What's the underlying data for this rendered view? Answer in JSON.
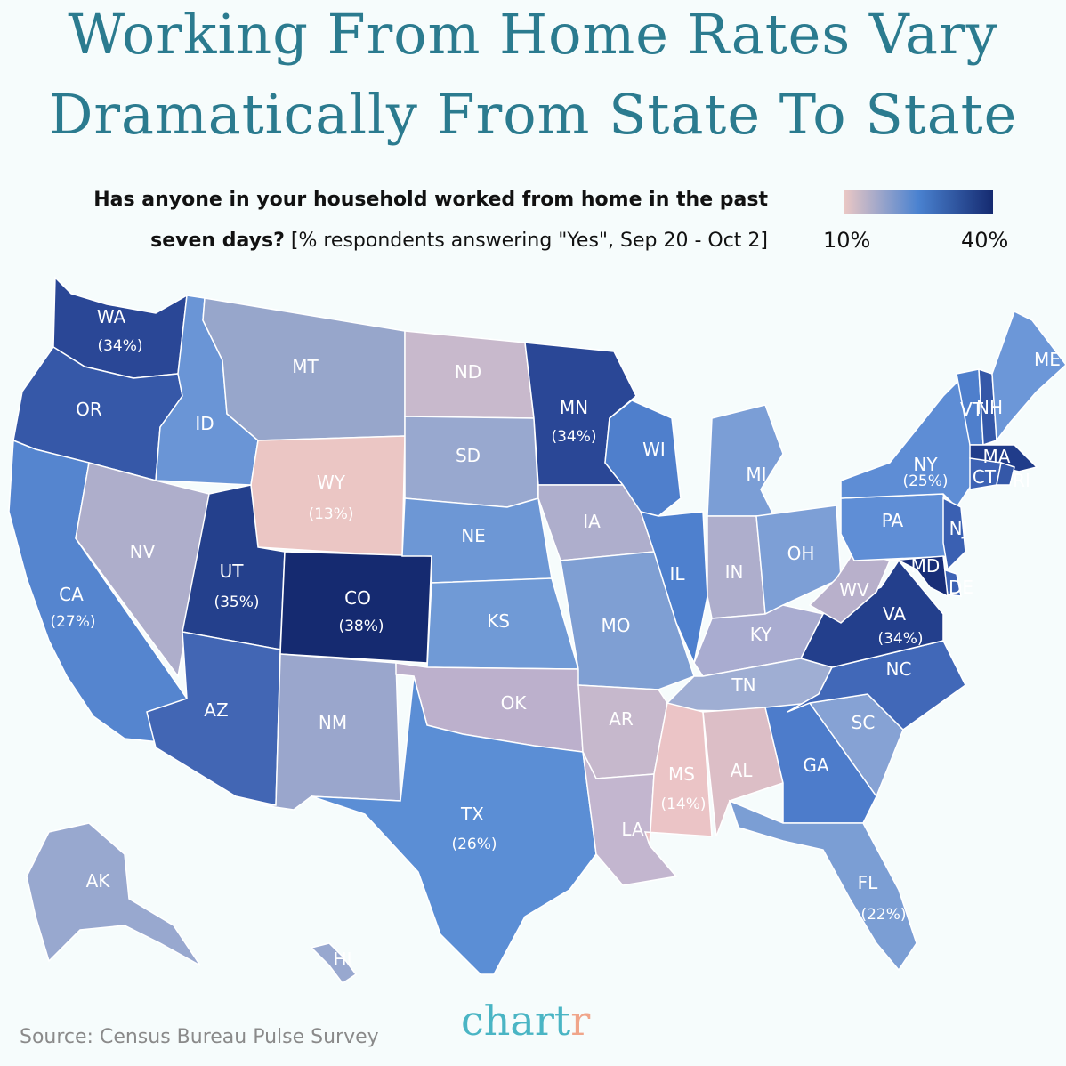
{
  "title_line1": "Working From Home Rates Vary",
  "title_line2": "Dramatically From State To State",
  "subtitle_line1": "Has anyone in your household worked from home in the past",
  "subtitle_line2_bold": "seven days?",
  "subtitle_line2_rest": " [% respondents answering \"Yes\", Sep 20 - Oct 2]",
  "legend": {
    "min_label": "10%",
    "max_label": "40%",
    "colors": [
      "#ecc8c4",
      "#4a82d0",
      "#152a70"
    ]
  },
  "source": "Source: Census Bureau Pulse Survey",
  "logo": {
    "main": "chart",
    "accent": "r"
  },
  "states": [
    {
      "abbr": "WA",
      "pct": "(34%)",
      "color": "#2a4796"
    },
    {
      "abbr": "OR",
      "pct": "",
      "color": "#3658a8"
    },
    {
      "abbr": "CA",
      "pct": "(27%)",
      "color": "#5585cf"
    },
    {
      "abbr": "ID",
      "pct": "",
      "color": "#6a95d6"
    },
    {
      "abbr": "NV",
      "pct": "",
      "color": "#aeaecb"
    },
    {
      "abbr": "MT",
      "pct": "",
      "color": "#97a6cb"
    },
    {
      "abbr": "WY",
      "pct": "(13%)",
      "color": "#ebc6c4"
    },
    {
      "abbr": "UT",
      "pct": "(35%)",
      "color": "#24408c"
    },
    {
      "abbr": "CO",
      "pct": "(38%)",
      "color": "#152a70"
    },
    {
      "abbr": "AZ",
      "pct": "",
      "color": "#4266b4"
    },
    {
      "abbr": "NM",
      "pct": "",
      "color": "#9aa6cc"
    },
    {
      "abbr": "ND",
      "pct": "",
      "color": "#c8b9cc"
    },
    {
      "abbr": "SD",
      "pct": "",
      "color": "#98a8cf"
    },
    {
      "abbr": "NE",
      "pct": "",
      "color": "#6d97d5"
    },
    {
      "abbr": "KS",
      "pct": "",
      "color": "#709ad6"
    },
    {
      "abbr": "OK",
      "pct": "",
      "color": "#bcb0cc"
    },
    {
      "abbr": "TX",
      "pct": "(26%)",
      "color": "#5b8ed5"
    },
    {
      "abbr": "MN",
      "pct": "(34%)",
      "color": "#2a4796"
    },
    {
      "abbr": "IA",
      "pct": "",
      "color": "#aeaecc"
    },
    {
      "abbr": "MO",
      "pct": "",
      "color": "#7f9fd3"
    },
    {
      "abbr": "AR",
      "pct": "",
      "color": "#c6b8cc"
    },
    {
      "abbr": "LA",
      "pct": "",
      "color": "#c3b6cf"
    },
    {
      "abbr": "WI",
      "pct": "",
      "color": "#4f7fcc"
    },
    {
      "abbr": "IL",
      "pct": "",
      "color": "#4e80ce"
    },
    {
      "abbr": "MI",
      "pct": "",
      "color": "#7b9ed6"
    },
    {
      "abbr": "IN",
      "pct": "",
      "color": "#aeaecc"
    },
    {
      "abbr": "OH",
      "pct": "",
      "color": "#7d9fd6"
    },
    {
      "abbr": "KY",
      "pct": "",
      "color": "#a9acd0"
    },
    {
      "abbr": "TN",
      "pct": "",
      "color": "#9faed3"
    },
    {
      "abbr": "MS",
      "pct": "(14%)",
      "color": "#ebc4c6"
    },
    {
      "abbr": "AL",
      "pct": "",
      "color": "#dcbec6"
    },
    {
      "abbr": "GA",
      "pct": "",
      "color": "#4d7ccb"
    },
    {
      "abbr": "FL",
      "pct": "(22%)",
      "color": "#7b9ed4"
    },
    {
      "abbr": "SC",
      "pct": "",
      "color": "#86a2d4"
    },
    {
      "abbr": "NC",
      "pct": "",
      "color": "#4168b8"
    },
    {
      "abbr": "VA",
      "pct": "(34%)",
      "color": "#233f8c"
    },
    {
      "abbr": "WV",
      "pct": "",
      "color": "#b8b0cb"
    },
    {
      "abbr": "PA",
      "pct": "",
      "color": "#5f8ed6"
    },
    {
      "abbr": "NY",
      "pct": "(25%)",
      "color": "#5e8dd5"
    },
    {
      "abbr": "VT",
      "pct": "",
      "color": "#4f7fcc"
    },
    {
      "abbr": "NH",
      "pct": "",
      "color": "#3558a8"
    },
    {
      "abbr": "ME",
      "pct": "",
      "color": "#6c97d8"
    },
    {
      "abbr": "MA",
      "pct": "",
      "color": "#203c8a"
    },
    {
      "abbr": "CT",
      "pct": "",
      "color": "#3d62b4"
    },
    {
      "abbr": "RI",
      "pct": "",
      "color": "#3558a8"
    },
    {
      "abbr": "NJ",
      "pct": "",
      "color": "#3a60b2"
    },
    {
      "abbr": "DE",
      "pct": "",
      "color": "#3d62b4"
    },
    {
      "abbr": "MD",
      "pct": "",
      "color": "#182e78"
    },
    {
      "abbr": "AK",
      "pct": "",
      "color": "#98a8cf"
    },
    {
      "abbr": "HI",
      "pct": "",
      "color": "#98a8cf"
    }
  ]
}
